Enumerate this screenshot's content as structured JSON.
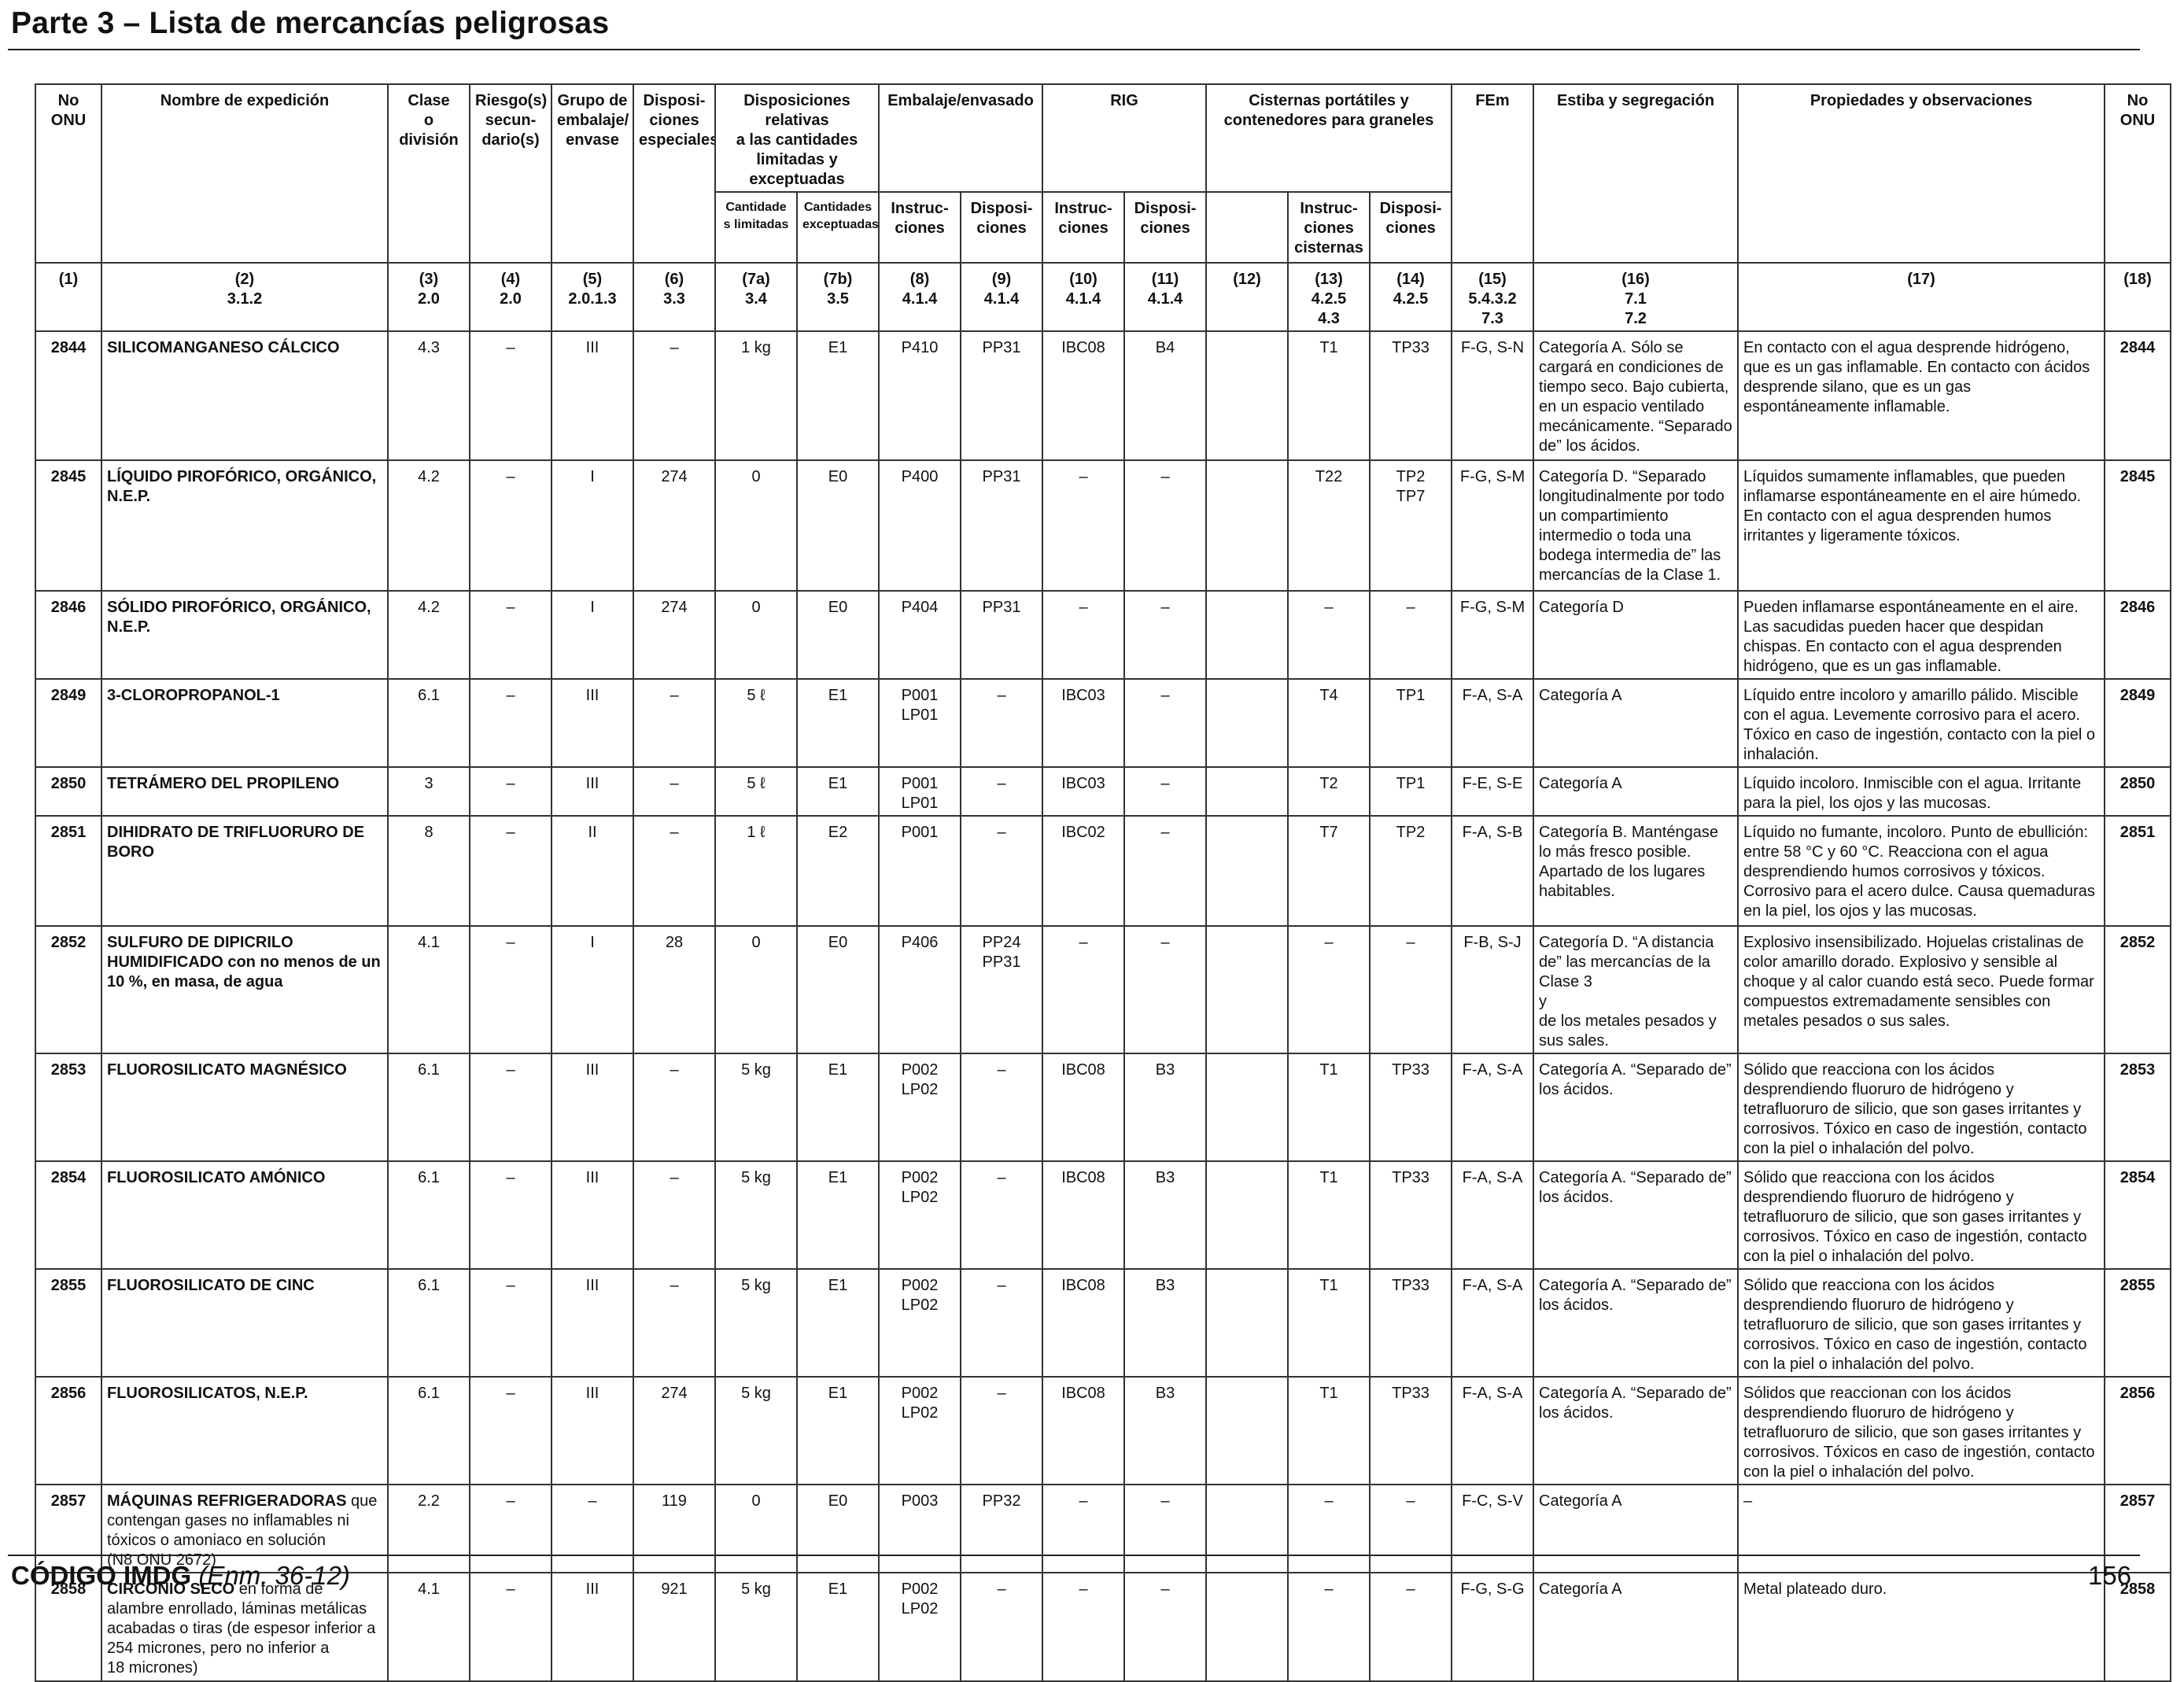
{
  "page": {
    "title": "Parte 3 – Lista de mercancías peligrosas",
    "footer_code": "CÓDIGO IMDG",
    "footer_amend": "(Enm. 36-12)",
    "page_number": "156"
  },
  "headers": {
    "un_no": "No\nONU",
    "name": "Nombre de expedición",
    "class": "Clase\no\ndivisión",
    "subsidiary": "Riesgo(s)\nsecun-\ndario(s)",
    "packing_group": "Grupo de\nembalaje/\nenvase",
    "special": "Disposi-\nciones\nespeciales",
    "limited_group": "Disposiciones relativas\na las cantidades\nlimitadas y exceptuadas",
    "limited": "Cantidade\ns limitadas",
    "excepted": "Cantidades\nexceptuadas",
    "packaging_group": "Embalaje/envasado",
    "pkg_instr": "Instruc-\nciones",
    "pkg_prov": "Disposi-\nciones",
    "ibc_group": "RIG",
    "ibc_instr": "Instruc-\nciones",
    "ibc_prov": "Disposi-\nciones",
    "tank_group": "Cisternas portátiles y\ncontenedores para graneles",
    "tank_instr": "Instruc-\nciones\ncisternas",
    "tank_prov": "Disposi-\nciones",
    "ems": "FEm",
    "stowage": "Estiba y segregación",
    "properties": "Propiedades y observaciones",
    "un_no_right": "No\nONU"
  },
  "refs": [
    "(1)",
    "(2)\n3.1.2",
    "(3)\n2.0",
    "(4)\n2.0",
    "(5)\n2.0.1.3",
    "(6)\n3.3",
    "(7a)\n3.4",
    "(7b)\n3.5",
    "(8)\n4.1.4",
    "(9)\n4.1.4",
    "(10)\n4.1.4",
    "(11)\n4.1.4",
    "(12)",
    "(13)\n4.2.5\n4.3",
    "(14)\n4.2.5",
    "(15)\n5.4.3.2\n7.3",
    "(16)\n7.1\n7.2",
    "(17)",
    "(18)"
  ],
  "rows": [
    {
      "un": "2844",
      "name_bold": "SILICOMANGANESO CÁLCICO",
      "name_rest": "",
      "cls": "4.3",
      "sub": "–",
      "pg": "III",
      "sp": "–",
      "lq": "1 kg",
      "eq": "E1",
      "pi": "P410",
      "pp": "PP31",
      "ibc": "IBC08",
      "ibcp": "B4",
      "c12": "",
      "tank": "T1",
      "tankp": "TP33",
      "ems": "F-G, S-N",
      "stow": "Categoría A. Sólo se cargará en condiciones de tiempo seco. Bajo cubierta, en un espacio ventilado mecánicamente. “Separado de” los ácidos.",
      "props": "En contacto con el agua desprende hidrógeno, que es un gas inflamable. En contacto con ácidos desprende silano, que es un gas espontáneamente inflamable."
    },
    {
      "un": "2845",
      "name_bold": "LÍQUIDO PIROFÓRICO, ORGÁNICO, N.E.P.",
      "name_rest": "",
      "cls": "4.2",
      "sub": "–",
      "pg": "I",
      "sp": "274",
      "lq": "0",
      "eq": "E0",
      "pi": "P400",
      "pp": "PP31",
      "ibc": "–",
      "ibcp": "–",
      "c12": "",
      "tank": "T22",
      "tankp": "TP2\nTP7",
      "ems": "F-G, S-M",
      "stow": "Categoría D. “Separado longitudinalmente por todo un compartimiento intermedio o toda una bodega intermedia de” las mercancías de la Clase 1.",
      "props": "Líquidos sumamente inflamables, que pueden inflamarse espontáneamente en el aire húmedo. En contacto con el agua desprenden humos irritantes y ligeramente tóxicos."
    },
    {
      "un": "2846",
      "name_bold": "SÓLIDO PIROFÓRICO, ORGÁNICO, N.E.P.",
      "name_rest": "",
      "cls": "4.2",
      "sub": "–",
      "pg": "I",
      "sp": "274",
      "lq": "0",
      "eq": "E0",
      "pi": "P404",
      "pp": "PP31",
      "ibc": "–",
      "ibcp": "–",
      "c12": "",
      "tank": "–",
      "tankp": "–",
      "ems": "F-G, S-M",
      "stow": "Categoría D",
      "props": "Pueden inflamarse espontáneamente en el aire. Las sacudidas pueden hacer que despidan chispas. En contacto con el agua desprenden hidrógeno, que es un gas inflamable."
    },
    {
      "un": "2849",
      "name_bold": "3-CLOROPROPANOL-1",
      "name_rest": "",
      "cls": "6.1",
      "sub": "–",
      "pg": "III",
      "sp": "–",
      "lq": "5 ℓ",
      "eq": "E1",
      "pi": "P001\nLP01",
      "pp": "–",
      "ibc": "IBC03",
      "ibcp": "–",
      "c12": "",
      "tank": "T4",
      "tankp": "TP1",
      "ems": "F-A, S-A",
      "stow": "Categoría A",
      "props": "Líquido entre incoloro y amarillo pálido. Miscible con el agua. Levemente corrosivo para el acero. Tóxico en caso de ingestión, contacto con la piel o inhalación."
    },
    {
      "un": "2850",
      "name_bold": "TETRÁMERO DEL PROPILENO",
      "name_rest": "",
      "cls": "3",
      "sub": "–",
      "pg": "III",
      "sp": "–",
      "lq": "5 ℓ",
      "eq": "E1",
      "pi": "P001\nLP01",
      "pp": "–",
      "ibc": "IBC03",
      "ibcp": "–",
      "c12": "",
      "tank": "T2",
      "tankp": "TP1",
      "ems": "F-E, S-E",
      "stow": "Categoría A",
      "props": "Líquido incoloro. Inmiscible con el agua. Irritante para la piel, los ojos y las mucosas."
    },
    {
      "un": "2851",
      "name_bold": "DIHIDRATO DE TRIFLUORURO DE BORO",
      "name_rest": "",
      "cls": "8",
      "sub": "–",
      "pg": "II",
      "sp": "–",
      "lq": "1 ℓ",
      "eq": "E2",
      "pi": "P001",
      "pp": "–",
      "ibc": "IBC02",
      "ibcp": "–",
      "c12": "",
      "tank": "T7",
      "tankp": "TP2",
      "ems": "F-A, S-B",
      "stow": "Categoría B. Manténgase lo más fresco posible. Apartado de los lugares habitables.",
      "props": "Líquido no fumante, incoloro. Punto de ebullición: entre 58 °C y 60 °C. Reacciona con el agua desprendiendo humos corrosivos y tóxicos. Corrosivo para el acero dulce. Causa quemaduras en la piel, los ojos y las mucosas."
    },
    {
      "un": "2852",
      "name_bold": "SULFURO DE DIPICRILO HUMIDIFICADO con no menos de un 10 %, en masa, de agua",
      "name_rest": "",
      "cls": "4.1",
      "sub": "–",
      "pg": "I",
      "sp": "28",
      "lq": "0",
      "eq": "E0",
      "pi": "P406",
      "pp": "PP24\nPP31",
      "ibc": "–",
      "ibcp": "–",
      "c12": "",
      "tank": "–",
      "tankp": "–",
      "ems": "F-B, S-J",
      "stow": "Categoría D. “A distancia de” las mercancías de la Clase 3\ny\nde los metales pesados y sus sales.",
      "props": "Explosivo insensibilizado. Hojuelas cristalinas de color amarillo dorado. Explosivo y sensible al choque y al calor cuando está seco. Puede formar compuestos extremadamente sensibles con metales pesados o sus sales."
    },
    {
      "un": "2853",
      "name_bold": "FLUOROSILICATO MAGNÉSICO",
      "name_rest": "",
      "cls": "6.1",
      "sub": "–",
      "pg": "III",
      "sp": "–",
      "lq": "5 kg",
      "eq": "E1",
      "pi": "P002\nLP02",
      "pp": "–",
      "ibc": "IBC08",
      "ibcp": "B3",
      "c12": "",
      "tank": "T1",
      "tankp": "TP33",
      "ems": "F-A, S-A",
      "stow": "Categoría A. “Separado de” los ácidos.",
      "props": "Sólido que reacciona con los ácidos desprendiendo fluoruro de hidrógeno y tetrafluoruro de silicio, que son gases irritantes y corrosivos. Tóxico en caso de ingestión, contacto con la piel o inhalación del polvo."
    },
    {
      "un": "2854",
      "name_bold": "FLUOROSILICATO AMÓNICO",
      "name_rest": "",
      "cls": "6.1",
      "sub": "–",
      "pg": "III",
      "sp": "–",
      "lq": "5 kg",
      "eq": "E1",
      "pi": "P002\nLP02",
      "pp": "–",
      "ibc": "IBC08",
      "ibcp": "B3",
      "c12": "",
      "tank": "T1",
      "tankp": "TP33",
      "ems": "F-A, S-A",
      "stow": "Categoría A. “Separado de” los ácidos.",
      "props": "Sólido que reacciona con los ácidos desprendiendo fluoruro de hidrógeno y tetrafluoruro de silicio, que son gases irritantes y corrosivos. Tóxico en caso de ingestión, contacto con la piel o inhalación del polvo."
    },
    {
      "un": "2855",
      "name_bold": "FLUOROSILICATO DE CINC",
      "name_rest": "",
      "cls": "6.1",
      "sub": "–",
      "pg": "III",
      "sp": "–",
      "lq": "5 kg",
      "eq": "E1",
      "pi": "P002\nLP02",
      "pp": "–",
      "ibc": "IBC08",
      "ibcp": "B3",
      "c12": "",
      "tank": "T1",
      "tankp": "TP33",
      "ems": "F-A, S-A",
      "stow": "Categoría A. “Separado de” los ácidos.",
      "props": "Sólido que reacciona con los ácidos desprendiendo fluoruro de hidrógeno y tetrafluoruro de silicio, que son gases irritantes y corrosivos. Tóxico en caso de ingestión, contacto con la piel o inhalación del polvo."
    },
    {
      "un": "2856",
      "name_bold": "FLUOROSILICATOS, N.E.P.",
      "name_rest": "",
      "cls": "6.1",
      "sub": "–",
      "pg": "III",
      "sp": "274",
      "lq": "5 kg",
      "eq": "E1",
      "pi": "P002\nLP02",
      "pp": "–",
      "ibc": "IBC08",
      "ibcp": "B3",
      "c12": "",
      "tank": "T1",
      "tankp": "TP33",
      "ems": "F-A, S-A",
      "stow": "Categoría A. “Separado de” los ácidos.",
      "props": "Sólidos que reaccionan con los ácidos desprendiendo fluoruro de hidrógeno y tetrafluoruro de silicio, que son gases irritantes y corrosivos. Tóxicos en caso de ingestión, contacto con la piel o inhalación del polvo."
    },
    {
      "un": "2857",
      "name_bold": "MÁQUINAS REFRIGERADORAS",
      "name_rest": " que contengan gases no inflamables ni tóxicos o amoniaco en solución\n(N8 ONU 2672)",
      "cls": "2.2",
      "sub": "–",
      "pg": "–",
      "sp": "119",
      "lq": "0",
      "eq": "E0",
      "pi": "P003",
      "pp": "PP32",
      "ibc": "–",
      "ibcp": "–",
      "c12": "",
      "tank": "–",
      "tankp": "–",
      "ems": "F-C, S-V",
      "stow": "Categoría A",
      "props": "–"
    },
    {
      "un": "2858",
      "name_bold": "CIRCONIO SECO",
      "name_rest": " en forma de alambre enrollado, láminas metálicas acabadas o tiras (de espesor inferior a 254 micrones, pero no inferior a\n18 micrones)",
      "cls": "4.1",
      "sub": "–",
      "pg": "III",
      "sp": "921",
      "lq": "5 kg",
      "eq": "E1",
      "pi": "P002\nLP02",
      "pp": "–",
      "ibc": "–",
      "ibcp": "–",
      "c12": "",
      "tank": "–",
      "tankp": "–",
      "ems": "F-G, S-G",
      "stow": "Categoría A",
      "props": "Metal plateado duro."
    }
  ]
}
